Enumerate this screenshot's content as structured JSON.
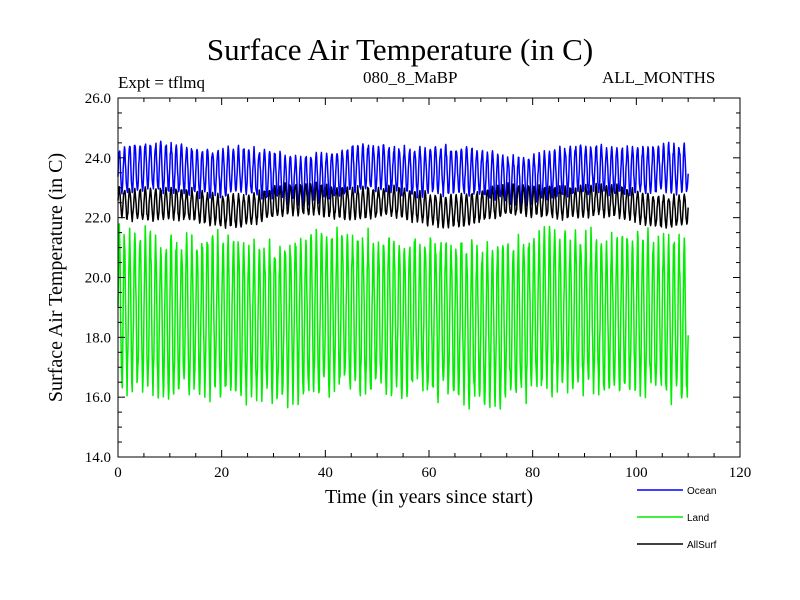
{
  "chart_data": {
    "type": "line",
    "title": "Surface Air Temperature (in C)",
    "experiment_label": "Expt = tflmq",
    "subtitle": "080_8_MaBP",
    "period_label": "ALL_MONTHS",
    "xlabel": "Time (in years since start)",
    "ylabel": "Surface Air Temperature (in C)",
    "xlim": [
      0,
      120
    ],
    "ylim": [
      14.0,
      26.0
    ],
    "xticks": [
      0,
      20,
      40,
      60,
      80,
      100,
      120
    ],
    "xtick_labels": [
      "0",
      "20",
      "40",
      "60",
      "80",
      "100",
      "120"
    ],
    "yticks": [
      14.0,
      16.0,
      18.0,
      20.0,
      22.0,
      24.0,
      26.0
    ],
    "ytick_labels": [
      "14.0",
      "16.0",
      "18.0",
      "20.0",
      "22.0",
      "24.0",
      "26.0"
    ],
    "grid": false,
    "legend_position": "bottom-right",
    "x_end": 110,
    "series": [
      {
        "name": "Ocean",
        "color": "#0000ff",
        "mean": 23.5,
        "seasonal_amplitude": 0.75,
        "min_observed": 22.9,
        "max_observed": 24.6
      },
      {
        "name": "Land",
        "color": "#00ee00",
        "mean": 18.7,
        "seasonal_amplitude": 2.5,
        "min_observed": 15.8,
        "max_observed": 21.8
      },
      {
        "name": "AllSurf",
        "color": "#000000",
        "mean": 22.45,
        "seasonal_amplitude": 0.5,
        "min_observed": 21.6,
        "max_observed": 23.3
      }
    ]
  }
}
